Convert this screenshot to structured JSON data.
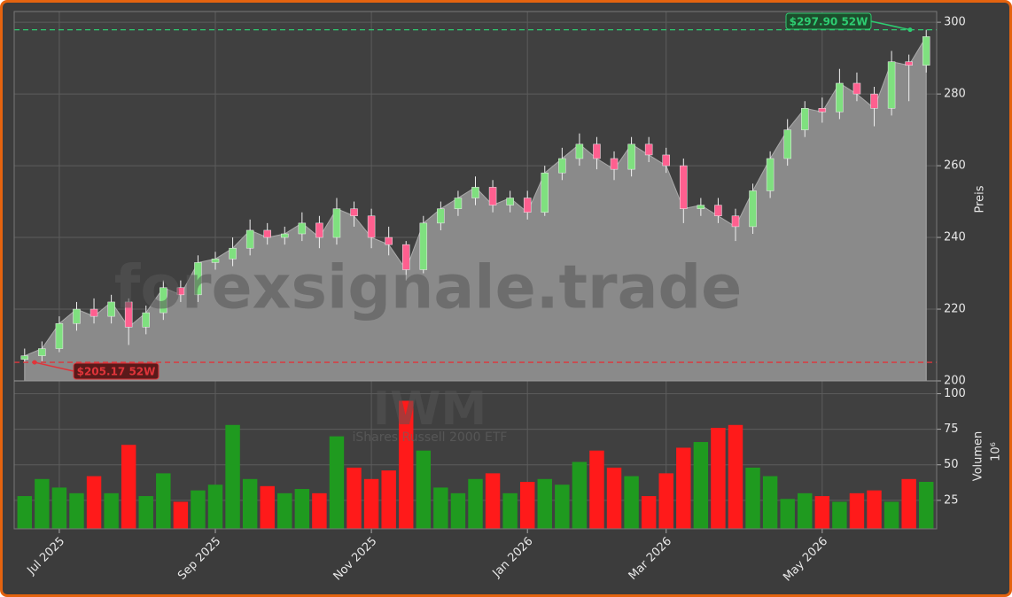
{
  "chart_data": [
    {
      "type": "candlestick",
      "ylabel": "Preis",
      "ylim": [
        200,
        303
      ],
      "yticks": [
        200,
        220,
        240,
        260,
        280,
        300
      ],
      "grid": true,
      "up_color": "#7fe07f",
      "down_color": "#ff5f8f",
      "area_color": "#8a8a8a",
      "open": [
        206,
        207,
        209,
        216,
        220,
        218,
        222,
        215,
        219,
        226,
        224,
        233,
        234,
        237,
        242,
        240,
        241,
        244,
        240,
        248,
        246,
        240,
        238,
        231,
        244,
        248,
        251,
        254,
        249,
        251,
        247,
        258,
        262,
        266,
        262,
        259,
        266,
        263,
        260,
        248,
        249,
        246,
        243,
        253,
        262,
        270,
        276,
        275,
        283,
        280,
        276,
        289,
        288
      ],
      "high": [
        209,
        211,
        218,
        222,
        223,
        224,
        223,
        221,
        228,
        228,
        235,
        236,
        240,
        245,
        244,
        243,
        247,
        246,
        251,
        250,
        248,
        243,
        239,
        246,
        250,
        253,
        257,
        256,
        253,
        253,
        260,
        265,
        269,
        268,
        264,
        268,
        268,
        265,
        262,
        251,
        251,
        248,
        255,
        264,
        273,
        278,
        279,
        287,
        286,
        282,
        292,
        291,
        297.9
      ],
      "low": [
        205.17,
        205.5,
        208,
        214,
        216,
        216,
        210,
        213,
        217,
        222,
        222,
        231,
        232,
        235,
        238,
        238,
        239,
        237,
        238,
        243,
        237,
        235,
        228,
        230,
        242,
        246,
        249,
        247,
        247,
        245,
        246,
        256,
        260,
        259,
        256,
        257,
        261,
        258,
        244,
        246,
        244,
        239,
        241,
        251,
        260,
        268,
        272,
        273,
        278,
        271,
        274,
        278,
        286
      ],
      "close": [
        207,
        209,
        216,
        220,
        218,
        222,
        215,
        219,
        226,
        224,
        233,
        234,
        237,
        242,
        240,
        241,
        244,
        240,
        248,
        246,
        240,
        238,
        231,
        244,
        248,
        251,
        254,
        249,
        251,
        247,
        258,
        262,
        266,
        262,
        259,
        266,
        263,
        260,
        248,
        249,
        246,
        243,
        253,
        262,
        270,
        276,
        275,
        283,
        280,
        276,
        289,
        288,
        296
      ],
      "annotations": [
        {
          "text": "$297.90 52W",
          "value": 297.9,
          "color": "#2ecc71"
        },
        {
          "text": "$205.17 52W",
          "value": 205.17,
          "color": "#e0343a"
        }
      ],
      "watermark": "forexsignale.trade",
      "symbol": "IWM",
      "name": "iShares Russell 2000 ETF"
    },
    {
      "type": "bar",
      "ylabel": "Volumen",
      "yscale_label": "10⁶",
      "categories": [
        null,
        null,
        "Jul 2025",
        null,
        null,
        null,
        null,
        null,
        null,
        null,
        null,
        "Sep 2025",
        null,
        null,
        null,
        null,
        null,
        null,
        null,
        null,
        "Nov 2025",
        null,
        null,
        null,
        null,
        null,
        null,
        null,
        null,
        "Jan 2026",
        null,
        null,
        null,
        null,
        null,
        null,
        null,
        "Mar 2026",
        null,
        null,
        null,
        null,
        null,
        null,
        null,
        null,
        "May 2026",
        null,
        null,
        null,
        null,
        null,
        null
      ],
      "values": [
        28,
        40,
        34,
        30,
        42,
        30,
        64,
        28,
        44,
        24,
        32,
        36,
        78,
        40,
        35,
        30,
        33,
        30,
        70,
        48,
        40,
        46,
        95,
        60,
        34,
        30,
        40,
        44,
        30,
        38,
        40,
        36,
        52,
        60,
        48,
        42,
        28,
        44,
        62,
        66,
        76,
        78,
        48,
        42,
        26,
        30,
        28,
        24,
        30,
        32,
        24,
        40,
        38
      ],
      "ylim": [
        5,
        109
      ],
      "yticks": [
        25,
        50,
        75,
        100
      ],
      "grid": true,
      "up_color": "#1f9a1f",
      "down_color": "#ff1a1a"
    }
  ]
}
